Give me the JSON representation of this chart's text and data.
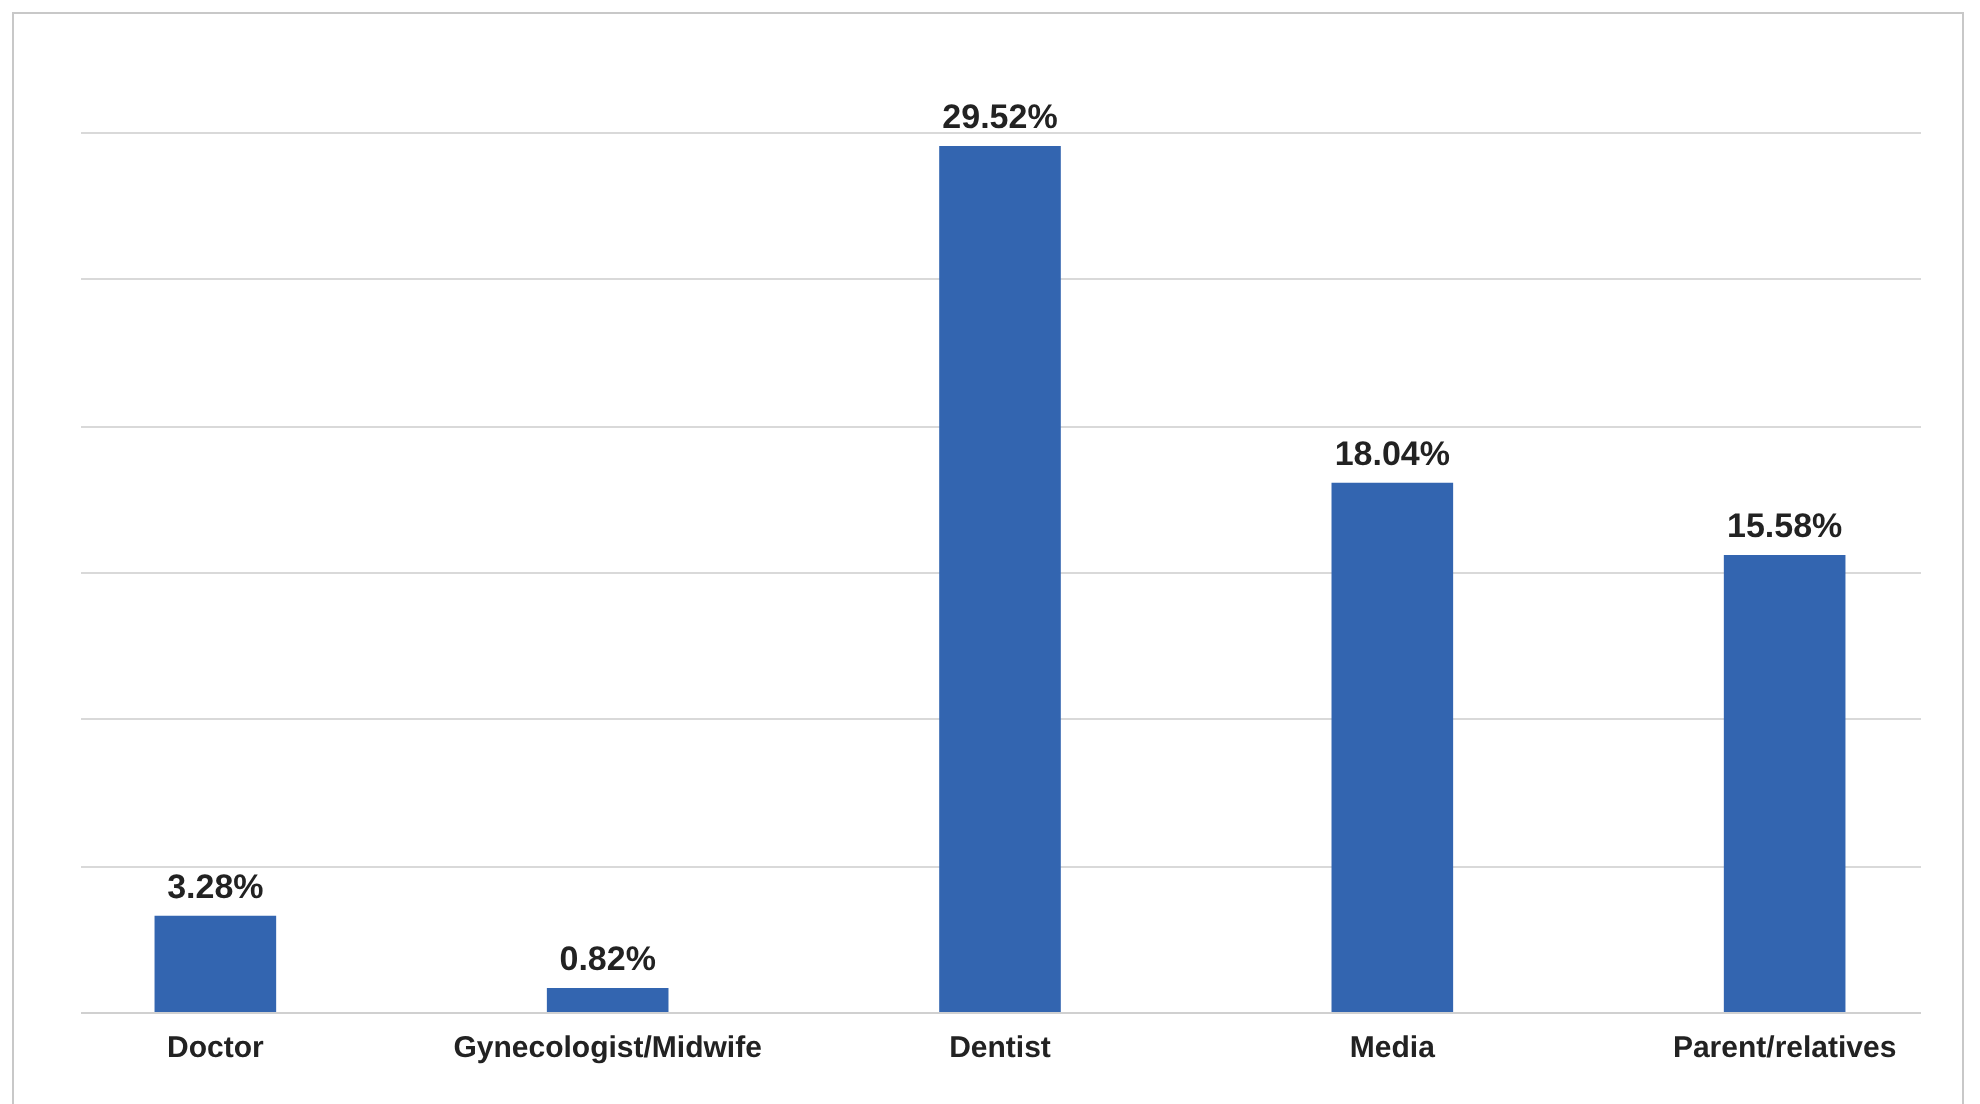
{
  "chart_data": {
    "type": "bar",
    "categories": [
      "Doctor",
      "Gynecologist/Midwife",
      "Dentist",
      "Media",
      "Parent/relatives"
    ],
    "values": [
      3.28,
      0.82,
      29.52,
      18.04,
      15.58
    ],
    "value_labels": [
      "3.28%",
      "0.82%",
      "29.52%",
      "18.04%",
      "15.58%"
    ],
    "color": "#3365b0",
    "ylim": [
      0,
      30
    ],
    "yticks": [
      {
        "value": 0,
        "label": null
      },
      {
        "value": 5,
        "label": null
      },
      {
        "value": 10,
        "label": null
      },
      {
        "value": 15,
        "label": null
      },
      {
        "value": 20,
        "label": null
      },
      {
        "value": 25,
        "label": null
      },
      {
        "value": 30,
        "label": null
      }
    ],
    "grid": "y"
  }
}
